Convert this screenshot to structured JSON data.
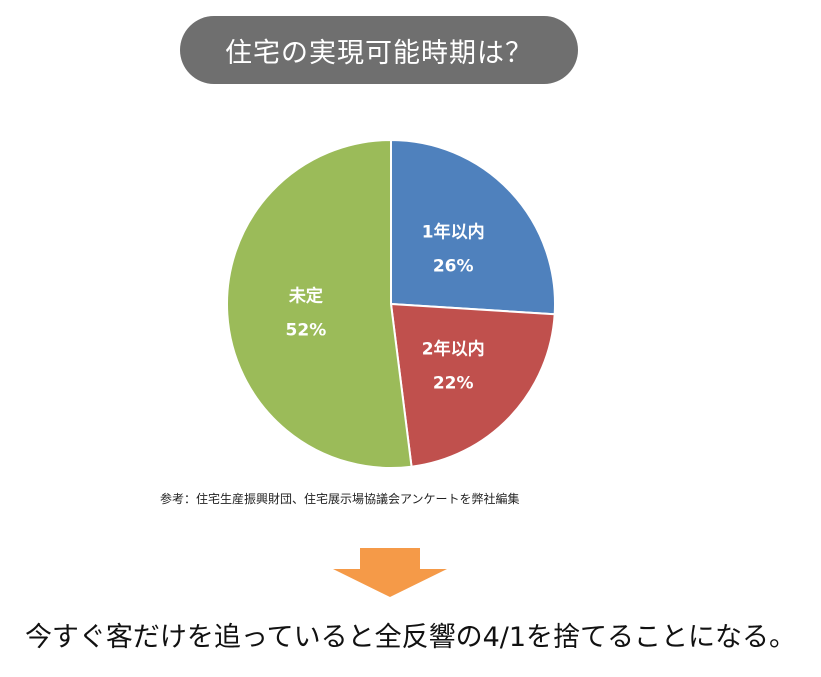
{
  "header": {
    "title": "住宅の実現可能時期は？"
  },
  "chart_data": {
    "type": "pie",
    "slices": [
      {
        "label": "1年以内",
        "value": 26,
        "display": "26%",
        "color": "#4f81bd"
      },
      {
        "label": "2年以内",
        "value": 22,
        "display": "22%",
        "color": "#c0504d"
      },
      {
        "label": "未定",
        "value": 52,
        "display": "52%",
        "color": "#9bbb59"
      }
    ]
  },
  "source_note": "参考：住宅生産振興財団、住宅展示場協議会アンケートを弊社編集",
  "conclusion": "今すぐ客だけを追っていると全反響の4/1を捨てることになる。",
  "colors": {
    "title_bg": "#6f6f6f",
    "arrow": "#f59a48"
  },
  "icons": {
    "arrow": "down-arrow-icon"
  }
}
